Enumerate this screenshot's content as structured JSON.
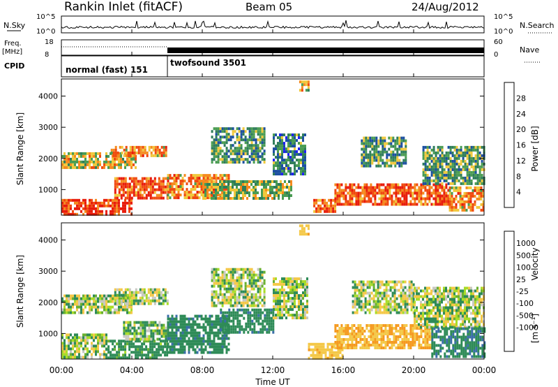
{
  "header": {
    "station": "Rankin Inlet (fitACF)",
    "beam": "Beam 05",
    "date": "24/Aug/2012"
  },
  "noise_panel": {
    "left_label": "N.Sky",
    "right_label": "N.Search",
    "left_ticks": [
      "10^5",
      "10^0"
    ],
    "right_ticks": [
      "10^5",
      "10^0"
    ]
  },
  "freq_panel": {
    "left_label_1": "Freq.",
    "left_label_2": "[MHz]",
    "right_label": "Nave",
    "left_ticks": [
      "18",
      "8"
    ],
    "right_ticks": [
      "60",
      "0"
    ]
  },
  "cpid_panel": {
    "label": "CPID",
    "modes": [
      {
        "name": "normal (fast) 151",
        "start_hour": 0,
        "end_hour": 6
      },
      {
        "name": "twofsound 3501",
        "start_hour": 6,
        "end_hour": 24
      }
    ]
  },
  "time_axis": {
    "label": "Time UT",
    "ticks": [
      "00:00",
      "04:00",
      "08:00",
      "12:00",
      "16:00",
      "20:00",
      "00:00"
    ],
    "range_hours": [
      0,
      24
    ]
  },
  "range_axis": {
    "label": "Slant Range [km]",
    "ticks": [
      "1000",
      "2000",
      "3000",
      "4000"
    ],
    "range_km": [
      180,
      4550
    ]
  },
  "power_scale": {
    "label": "Power [dB]",
    "ticks": [
      "4",
      "8",
      "12",
      "16",
      "20",
      "24",
      "28"
    ],
    "colors": [
      "#1f1ff5",
      "#1b4fa0",
      "#2f7d5a",
      "#4a9c52",
      "#f0c83c",
      "#f58a1e",
      "#f04a10",
      "#e81c0c"
    ]
  },
  "velocity_scale": {
    "label": "Velocity",
    "unit": "[m s⁻¹]",
    "ticks": [
      "1000",
      "500",
      "100",
      "25",
      "-25",
      "-100",
      "-500",
      "-1000"
    ],
    "colors": [
      "#1c3fd0",
      "#3a6ea8",
      "#2e8b57",
      "#6ab030",
      "#a8dc28",
      "#c8c8c0",
      "#f4c848",
      "#f59a20",
      "#f07010",
      "#e82a0a"
    ]
  },
  "chart_data": [
    {
      "type": "heatmap",
      "title": "Power",
      "xlabel": "Time UT",
      "ylabel": "Slant Range [km]",
      "colorbar_label": "Power [dB]",
      "xlim": [
        0,
        24
      ],
      "ylim": [
        180,
        4550
      ],
      "echo_regions": [
        {
          "t": [
            0.0,
            4.2
          ],
          "r": [
            1750,
            2200
          ],
          "value": 18
        },
        {
          "t": [
            2.8,
            6.0
          ],
          "r": [
            2050,
            2400
          ],
          "value": 22
        },
        {
          "t": [
            0.0,
            4.0
          ],
          "r": [
            250,
            700
          ],
          "value": 28
        },
        {
          "t": [
            3.0,
            6.0
          ],
          "r": [
            700,
            1400
          ],
          "value": 26
        },
        {
          "t": [
            6.0,
            9.5
          ],
          "r": [
            700,
            1500
          ],
          "value": 22
        },
        {
          "t": [
            8.5,
            11.5
          ],
          "r": [
            1900,
            3000
          ],
          "value": 12
        },
        {
          "t": [
            8.0,
            13.0
          ],
          "r": [
            700,
            1300
          ],
          "value": 16
        },
        {
          "t": [
            12.0,
            13.8
          ],
          "r": [
            1500,
            2800
          ],
          "value": 10
        },
        {
          "t": [
            13.5,
            14.0
          ],
          "r": [
            4200,
            4500
          ],
          "value": 18
        },
        {
          "t": [
            14.3,
            15.5
          ],
          "r": [
            300,
            700
          ],
          "value": 24
        },
        {
          "t": [
            15.5,
            22.0
          ],
          "r": [
            500,
            1200
          ],
          "value": 26
        },
        {
          "t": [
            17.0,
            19.5
          ],
          "r": [
            1800,
            2700
          ],
          "value": 12
        },
        {
          "t": [
            20.5,
            24.0
          ],
          "r": [
            1200,
            2400
          ],
          "value": 12
        },
        {
          "t": [
            22.0,
            24.0
          ],
          "r": [
            300,
            1100
          ],
          "value": 22
        }
      ]
    },
    {
      "type": "heatmap",
      "title": "Velocity",
      "xlabel": "Time UT",
      "ylabel": "Slant Range [km]",
      "colorbar_label": "Velocity [m s⁻¹]",
      "xlim": [
        0,
        24
      ],
      "ylim": [
        180,
        4550
      ],
      "echo_regions": [
        {
          "t": [
            0.0,
            4.0
          ],
          "r": [
            1700,
            2250
          ],
          "value": 0
        },
        {
          "t": [
            3.0,
            6.0
          ],
          "r": [
            2000,
            2450
          ],
          "value": 0
        },
        {
          "t": [
            0.0,
            2.5
          ],
          "r": [
            250,
            1000
          ],
          "value": 0
        },
        {
          "t": [
            2.5,
            6.0
          ],
          "r": [
            250,
            800
          ],
          "value": 150
        },
        {
          "t": [
            3.5,
            6.0
          ],
          "r": [
            800,
            1400
          ],
          "value": 60
        },
        {
          "t": [
            6.0,
            9.5
          ],
          "r": [
            400,
            1600
          ],
          "value": 200
        },
        {
          "t": [
            8.5,
            11.5
          ],
          "r": [
            1900,
            3100
          ],
          "value": 0
        },
        {
          "t": [
            9.0,
            12.0
          ],
          "r": [
            1000,
            1800
          ],
          "value": 200
        },
        {
          "t": [
            12.0,
            14.0
          ],
          "r": [
            1500,
            2800
          ],
          "value": 0
        },
        {
          "t": [
            13.5,
            14.0
          ],
          "r": [
            4200,
            4500
          ],
          "value": -200
        },
        {
          "t": [
            14.0,
            16.0
          ],
          "r": [
            250,
            700
          ],
          "value": -200
        },
        {
          "t": [
            15.5,
            21.0
          ],
          "r": [
            500,
            1300
          ],
          "value": -300
        },
        {
          "t": [
            16.5,
            20.0
          ],
          "r": [
            1700,
            2700
          ],
          "value": 0
        },
        {
          "t": [
            20.0,
            24.0
          ],
          "r": [
            1200,
            2500
          ],
          "value": 0
        },
        {
          "t": [
            21.0,
            24.0
          ],
          "r": [
            300,
            1200
          ],
          "value": 250
        }
      ]
    }
  ]
}
